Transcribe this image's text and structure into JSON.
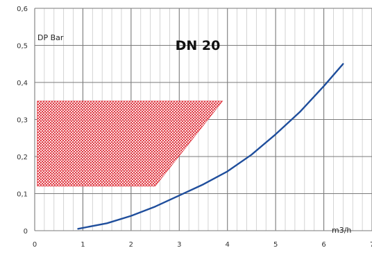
{
  "chart_data": {
    "type": "line",
    "title": "DN 20",
    "ylabel": "DP Bar",
    "xlabel": "m3/h",
    "xlim": [
      0,
      7
    ],
    "ylim": [
      0,
      0.6
    ],
    "x_ticks": [
      0,
      1,
      2,
      3,
      4,
      5,
      6,
      7
    ],
    "x_tick_labels": [
      "0",
      "1",
      "2",
      "3",
      "4",
      "5",
      "6",
      "7"
    ],
    "y_ticks": [
      0,
      0.1,
      0.2,
      0.3,
      0.4,
      0.5,
      0.6
    ],
    "y_tick_labels": [
      "0",
      "0,1",
      "0,2",
      "0,3",
      "0,4",
      "0,5",
      "0,6"
    ],
    "grid": {
      "major": true,
      "minor_x_per_major": 5
    },
    "series": [
      {
        "color": "#1f4e9c",
        "x": [
          0.9,
          1.5,
          2.0,
          2.5,
          3.0,
          3.5,
          4.0,
          4.5,
          5.0,
          5.5,
          6.0,
          6.4
        ],
        "y": [
          0.005,
          0.02,
          0.04,
          0.065,
          0.095,
          0.125,
          0.16,
          0.205,
          0.26,
          0.32,
          0.39,
          0.45
        ]
      }
    ],
    "regions": [
      {
        "color": "#e0333d",
        "pattern": "dotted",
        "polygon": [
          [
            0.05,
            0.35
          ],
          [
            3.9,
            0.35
          ],
          [
            2.5,
            0.12
          ],
          [
            0.05,
            0.12
          ]
        ]
      }
    ]
  }
}
